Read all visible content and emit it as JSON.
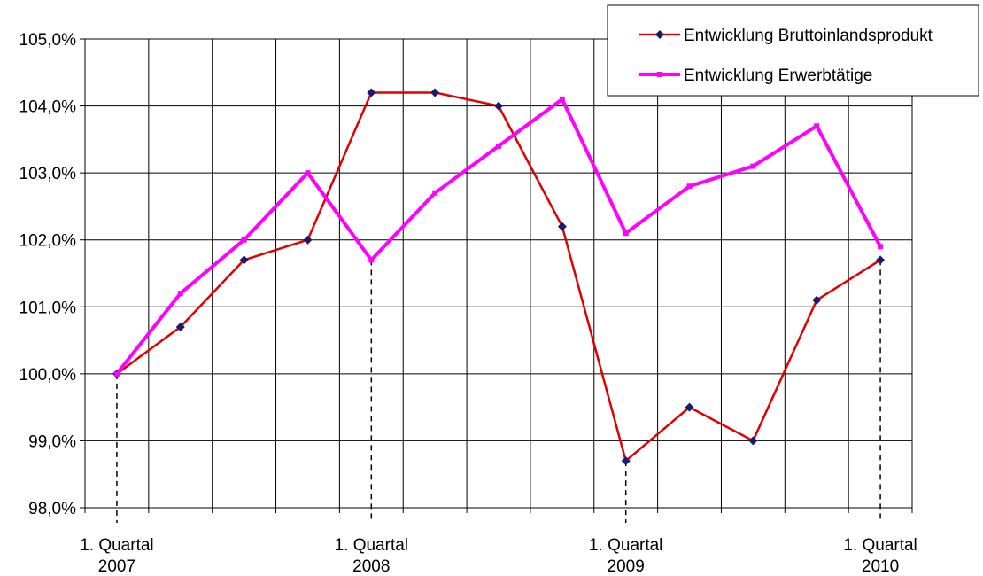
{
  "chart_data": {
    "type": "line",
    "title": "",
    "xlabel": "",
    "ylabel": "",
    "ylim": [
      98.0,
      105.0
    ],
    "y_ticks": [
      "98,0%",
      "99,0%",
      "100,0%",
      "101,0%",
      "102,0%",
      "103,0%",
      "104,0%",
      "105,0%"
    ],
    "y_tick_values": [
      98,
      99,
      100,
      101,
      102,
      103,
      104,
      105
    ],
    "x": [
      "Q1 2007",
      "Q2 2007",
      "Q3 2007",
      "Q4 2007",
      "Q1 2008",
      "Q2 2008",
      "Q3 2008",
      "Q4 2008",
      "Q1 2009",
      "Q2 2009",
      "Q3 2009",
      "Q4 2009",
      "Q1 2010"
    ],
    "x_tick_labels": [
      {
        "index": 0,
        "line1": "1. Quartal",
        "line2": "2007"
      },
      {
        "index": 4,
        "line1": "1. Quartal",
        "line2": "2008"
      },
      {
        "index": 8,
        "line1": "1. Quartal",
        "line2": "2009"
      },
      {
        "index": 12,
        "line1": "1. Quartal",
        "line2": "2010"
      }
    ],
    "grid": true,
    "legend_position": "top-right",
    "series": [
      {
        "name": "Entwicklung Bruttoinlandsprodukt",
        "color": "#e00000",
        "marker_color": "#1a1a6e",
        "marker": "diamond",
        "values": [
          100.0,
          100.7,
          101.7,
          102.0,
          104.2,
          104.2,
          104.0,
          102.2,
          98.7,
          99.5,
          99.0,
          101.1,
          101.7
        ]
      },
      {
        "name": "Entwicklung Erwerbtätige",
        "color": "#ff00ff",
        "marker_color": "#ff00ff",
        "marker": "square",
        "values": [
          100.0,
          101.2,
          102.0,
          103.0,
          101.7,
          102.7,
          103.4,
          104.1,
          102.1,
          102.8,
          103.1,
          103.7,
          101.9
        ]
      }
    ]
  }
}
